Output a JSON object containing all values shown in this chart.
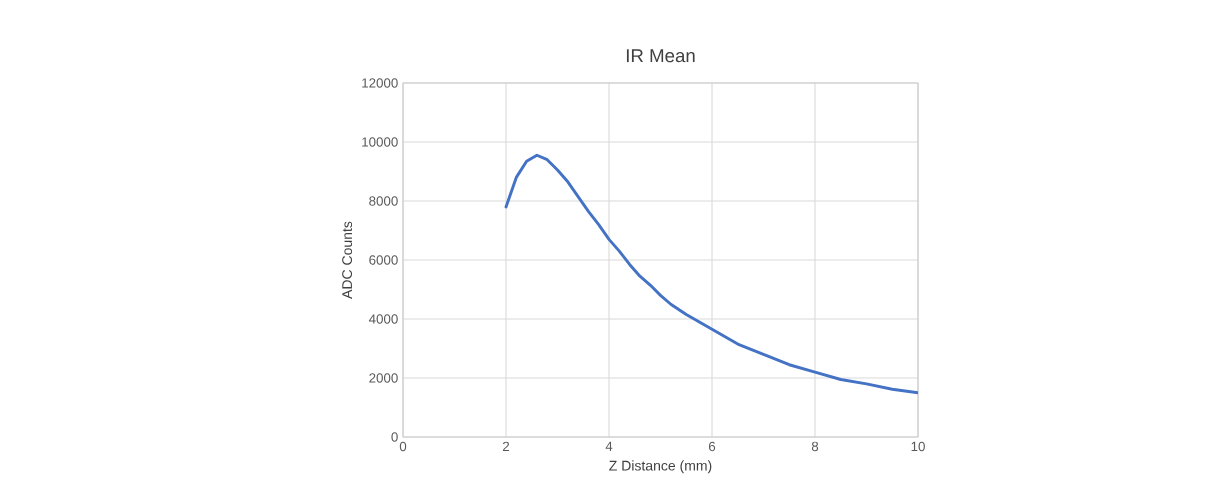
{
  "chart_data": {
    "type": "line",
    "title": "IR Mean",
    "xlabel": "Z Distance (mm)",
    "ylabel": "ADC Counts",
    "xlim": [
      0,
      10
    ],
    "xticks": [
      0,
      2,
      4,
      6,
      8,
      10
    ],
    "ylim": [
      0,
      12000
    ],
    "yticks": [
      0,
      2000,
      4000,
      6000,
      8000,
      10000,
      12000
    ],
    "grid": true,
    "series": [
      {
        "color": "#4472c4",
        "x": [
          2,
          2.2,
          2.4,
          2.6,
          2.8,
          3.0,
          3.2,
          3.4,
          3.6,
          3.8,
          4.0,
          4.2,
          4.4,
          4.6,
          4.8,
          5.0,
          5.2,
          5.5,
          6.0,
          6.5,
          7.0,
          7.5,
          8.0,
          8.5,
          9.0,
          9.5,
          10
        ],
        "values": [
          7800,
          8800,
          9350,
          9550,
          9400,
          9050,
          8650,
          8150,
          7650,
          7200,
          6700,
          6300,
          5850,
          5450,
          5150,
          4800,
          4500,
          4150,
          3650,
          3150,
          2800,
          2450,
          2200,
          1950,
          1800,
          1620,
          1500
        ]
      }
    ]
  }
}
